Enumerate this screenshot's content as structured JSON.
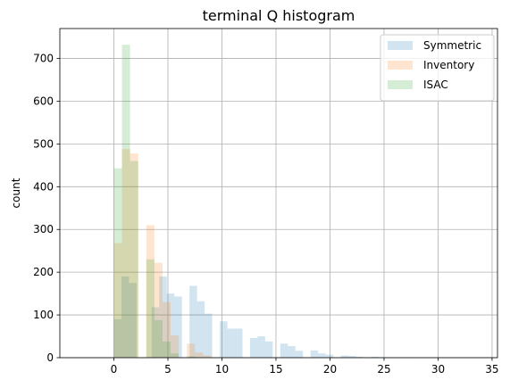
{
  "chart_data": {
    "type": "histogram",
    "title": "terminal Q histogram",
    "ylabel": "count",
    "xlabel": "",
    "xlim": [
      -5,
      35.5
    ],
    "ylim": [
      0,
      770
    ],
    "xticks": [
      0,
      5,
      10,
      15,
      20,
      25,
      30,
      35
    ],
    "yticks": [
      0,
      100,
      200,
      300,
      400,
      500,
      600,
      700
    ],
    "grid": true,
    "legend_position": "top-right",
    "series": [
      {
        "name": "Symmetric",
        "color": "#1f77b4",
        "alpha": 0.2,
        "bins": [
          {
            "x0": 0.0,
            "x1": 0.7,
            "count": 90
          },
          {
            "x0": 0.7,
            "x1": 1.4,
            "count": 190
          },
          {
            "x0": 1.4,
            "x1": 2.1,
            "count": 175
          },
          {
            "x0": 2.1,
            "x1": 3.5,
            "count": 0
          },
          {
            "x0": 3.5,
            "x1": 4.2,
            "count": 118
          },
          {
            "x0": 4.2,
            "x1": 4.9,
            "count": 190
          },
          {
            "x0": 4.9,
            "x1": 5.6,
            "count": 150
          },
          {
            "x0": 5.6,
            "x1": 6.3,
            "count": 143
          },
          {
            "x0": 6.3,
            "x1": 7.0,
            "count": 0
          },
          {
            "x0": 7.0,
            "x1": 7.7,
            "count": 168
          },
          {
            "x0": 7.7,
            "x1": 8.4,
            "count": 132
          },
          {
            "x0": 8.4,
            "x1": 9.1,
            "count": 103
          },
          {
            "x0": 9.1,
            "x1": 9.8,
            "count": 0
          },
          {
            "x0": 9.8,
            "x1": 10.5,
            "count": 85
          },
          {
            "x0": 10.5,
            "x1": 11.2,
            "count": 68
          },
          {
            "x0": 11.2,
            "x1": 11.9,
            "count": 68
          },
          {
            "x0": 11.9,
            "x1": 12.6,
            "count": 0
          },
          {
            "x0": 12.6,
            "x1": 13.3,
            "count": 46
          },
          {
            "x0": 13.3,
            "x1": 14.0,
            "count": 50
          },
          {
            "x0": 14.0,
            "x1": 14.7,
            "count": 38
          },
          {
            "x0": 14.7,
            "x1": 15.4,
            "count": 0
          },
          {
            "x0": 15.4,
            "x1": 16.1,
            "count": 33
          },
          {
            "x0": 16.1,
            "x1": 16.8,
            "count": 27
          },
          {
            "x0": 16.8,
            "x1": 17.5,
            "count": 16
          },
          {
            "x0": 17.5,
            "x1": 18.2,
            "count": 0
          },
          {
            "x0": 18.2,
            "x1": 18.9,
            "count": 17
          },
          {
            "x0": 18.9,
            "x1": 19.6,
            "count": 10
          },
          {
            "x0": 19.6,
            "x1": 20.3,
            "count": 7
          },
          {
            "x0": 20.3,
            "x1": 21.0,
            "count": 0
          },
          {
            "x0": 21.0,
            "x1": 21.7,
            "count": 5
          },
          {
            "x0": 21.7,
            "x1": 22.4,
            "count": 4
          },
          {
            "x0": 22.4,
            "x1": 23.1,
            "count": 2
          },
          {
            "x0": 23.1,
            "x1": 23.8,
            "count": 0
          },
          {
            "x0": 23.8,
            "x1": 24.5,
            "count": 2
          },
          {
            "x0": 24.5,
            "x1": 25.2,
            "count": 1
          },
          {
            "x0": 25.2,
            "x1": 25.9,
            "count": 1
          },
          {
            "x0": 25.9,
            "x1": 26.6,
            "count": 0
          },
          {
            "x0": 26.6,
            "x1": 27.3,
            "count": 1
          },
          {
            "x0": 27.3,
            "x1": 28.0,
            "count": 1
          }
        ]
      },
      {
        "name": "Inventory",
        "color": "#ff7f0e",
        "alpha": 0.2,
        "bins": [
          {
            "x0": 0.0,
            "x1": 0.75,
            "count": 268
          },
          {
            "x0": 0.75,
            "x1": 1.5,
            "count": 488
          },
          {
            "x0": 1.5,
            "x1": 2.25,
            "count": 478
          },
          {
            "x0": 2.25,
            "x1": 3.0,
            "count": 0
          },
          {
            "x0": 3.0,
            "x1": 3.75,
            "count": 310
          },
          {
            "x0": 3.75,
            "x1": 4.5,
            "count": 222
          },
          {
            "x0": 4.5,
            "x1": 5.25,
            "count": 130
          },
          {
            "x0": 5.25,
            "x1": 6.0,
            "count": 52
          },
          {
            "x0": 6.0,
            "x1": 6.75,
            "count": 0
          },
          {
            "x0": 6.75,
            "x1": 7.5,
            "count": 33
          },
          {
            "x0": 7.5,
            "x1": 8.25,
            "count": 12
          },
          {
            "x0": 8.25,
            "x1": 9.0,
            "count": 5
          }
        ]
      },
      {
        "name": "ISAC",
        "color": "#2ca02c",
        "alpha": 0.2,
        "bins": [
          {
            "x0": 0.0,
            "x1": 0.75,
            "count": 443
          },
          {
            "x0": 0.75,
            "x1": 1.5,
            "count": 732
          },
          {
            "x0": 1.5,
            "x1": 2.25,
            "count": 460
          },
          {
            "x0": 2.25,
            "x1": 3.0,
            "count": 0
          },
          {
            "x0": 3.0,
            "x1": 3.75,
            "count": 230
          },
          {
            "x0": 3.75,
            "x1": 4.5,
            "count": 88
          },
          {
            "x0": 4.5,
            "x1": 5.25,
            "count": 38
          },
          {
            "x0": 5.25,
            "x1": 6.0,
            "count": 10
          },
          {
            "x0": 6.0,
            "x1": 6.75,
            "count": 0
          },
          {
            "x0": 6.75,
            "x1": 7.5,
            "count": 3
          },
          {
            "x0": 7.5,
            "x1": 8.25,
            "count": 1
          }
        ]
      }
    ]
  }
}
